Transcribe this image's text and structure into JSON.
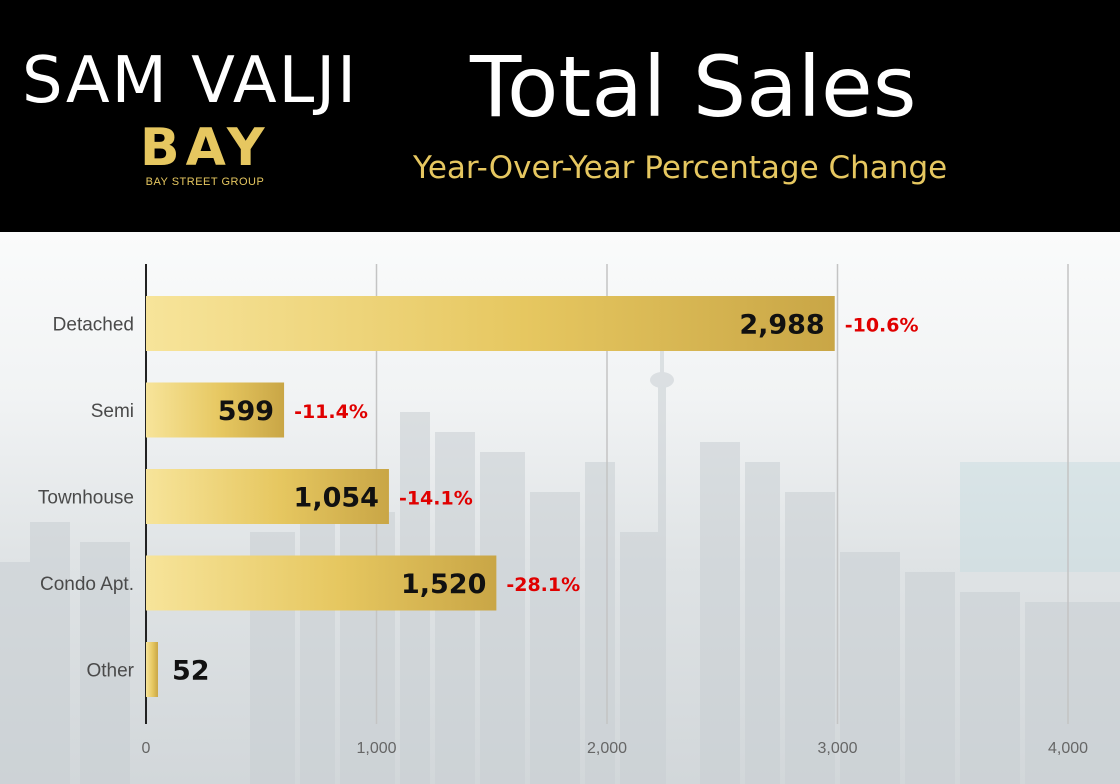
{
  "header": {
    "brand_name": "SAM VALJI",
    "logo_text": "BAY",
    "logo_subtext": "BAY STREET GROUP",
    "title": "Total Sales",
    "subtitle": "Year-Over-Year Percentage Change"
  },
  "colors": {
    "header_background": "#000000",
    "gold": "#e6c760",
    "gold_light": "#f7e49a",
    "gold_dark": "#c9a646",
    "change_red": "#e00000"
  },
  "chart_data": {
    "type": "bar",
    "orientation": "horizontal",
    "title": "Total Sales",
    "subtitle": "Year-Over-Year Percentage Change",
    "categories": [
      "Detached",
      "Semi",
      "Townhouse",
      "Condo Apt.",
      "Other"
    ],
    "values": [
      2988,
      599,
      1054,
      1520,
      52
    ],
    "value_labels": [
      "2,988",
      "599",
      "1,054",
      "1,520",
      "52"
    ],
    "yoy_change_labels": [
      "-10.6%",
      "-11.4%",
      "-14.1%",
      "-28.1%",
      ""
    ],
    "xlim": [
      0,
      4000
    ],
    "xticks": [
      0,
      1000,
      2000,
      3000,
      4000
    ],
    "xtick_labels": [
      "0",
      "1,000",
      "2,000",
      "3,000",
      "4,000"
    ],
    "grid": true
  }
}
